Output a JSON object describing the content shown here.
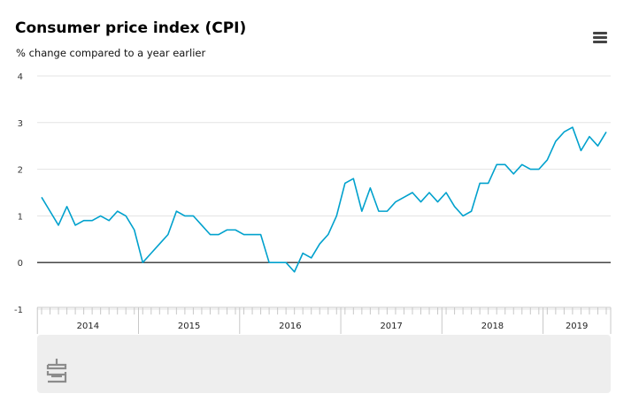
{
  "header": {
    "title": "Consumer price index (CPI)",
    "subtitle": "% change compared to a year earlier"
  },
  "menu": {
    "icon": "hamburger-menu-icon"
  },
  "logo": {
    "icon": "cbs-logo-icon"
  },
  "colors": {
    "line": "#00a1cd",
    "grid": "#e3e3e3",
    "zero_line": "#333333",
    "panel": "#eeeeee"
  },
  "chart_data": {
    "type": "line",
    "title": "Consumer price index (CPI)",
    "subtitle": "% change compared to a year earlier",
    "xlabel": "",
    "ylabel": "",
    "ylim": [
      -1,
      4
    ],
    "y_ticks": [
      "4",
      "3",
      "2",
      "1",
      "0",
      "-1"
    ],
    "x_ticks": [
      "2014",
      "2015",
      "2016",
      "2017",
      "2018",
      "2019"
    ],
    "grid": true,
    "x": [
      "2014-01",
      "2014-02",
      "2014-03",
      "2014-04",
      "2014-05",
      "2014-06",
      "2014-07",
      "2014-08",
      "2014-09",
      "2014-10",
      "2014-11",
      "2014-12",
      "2015-01",
      "2015-02",
      "2015-03",
      "2015-04",
      "2015-05",
      "2015-06",
      "2015-07",
      "2015-08",
      "2015-09",
      "2015-10",
      "2015-11",
      "2015-12",
      "2016-01",
      "2016-02",
      "2016-03",
      "2016-04",
      "2016-05",
      "2016-06",
      "2016-07",
      "2016-08",
      "2016-09",
      "2016-10",
      "2016-11",
      "2016-12",
      "2017-01",
      "2017-02",
      "2017-03",
      "2017-04",
      "2017-05",
      "2017-06",
      "2017-07",
      "2017-08",
      "2017-09",
      "2017-10",
      "2017-11",
      "2017-12",
      "2018-01",
      "2018-02",
      "2018-03",
      "2018-04",
      "2018-05",
      "2018-06",
      "2018-07",
      "2018-08",
      "2018-09",
      "2018-10",
      "2018-11",
      "2018-12",
      "2019-01",
      "2019-02",
      "2019-03",
      "2019-04",
      "2019-05",
      "2019-06",
      "2019-07",
      "2019-08"
    ],
    "series": [
      {
        "values": [
          1.4,
          1.1,
          0.8,
          1.2,
          0.8,
          0.9,
          0.9,
          1.0,
          0.9,
          1.1,
          1.0,
          0.7,
          0.0,
          0.2,
          0.4,
          0.6,
          1.1,
          1.0,
          1.0,
          0.8,
          0.6,
          0.6,
          0.7,
          0.7,
          0.6,
          0.6,
          0.6,
          0.0,
          0.0,
          0.0,
          -0.2,
          0.2,
          0.1,
          0.4,
          0.6,
          1.0,
          1.7,
          1.8,
          1.1,
          1.6,
          1.1,
          1.1,
          1.3,
          1.4,
          1.5,
          1.3,
          1.5,
          1.3,
          1.5,
          1.2,
          1.0,
          1.1,
          1.7,
          1.7,
          2.1,
          2.1,
          1.9,
          2.1,
          2.0,
          2.0,
          2.2,
          2.6,
          2.8,
          2.9,
          2.4,
          2.7,
          2.5,
          2.8
        ]
      }
    ]
  }
}
